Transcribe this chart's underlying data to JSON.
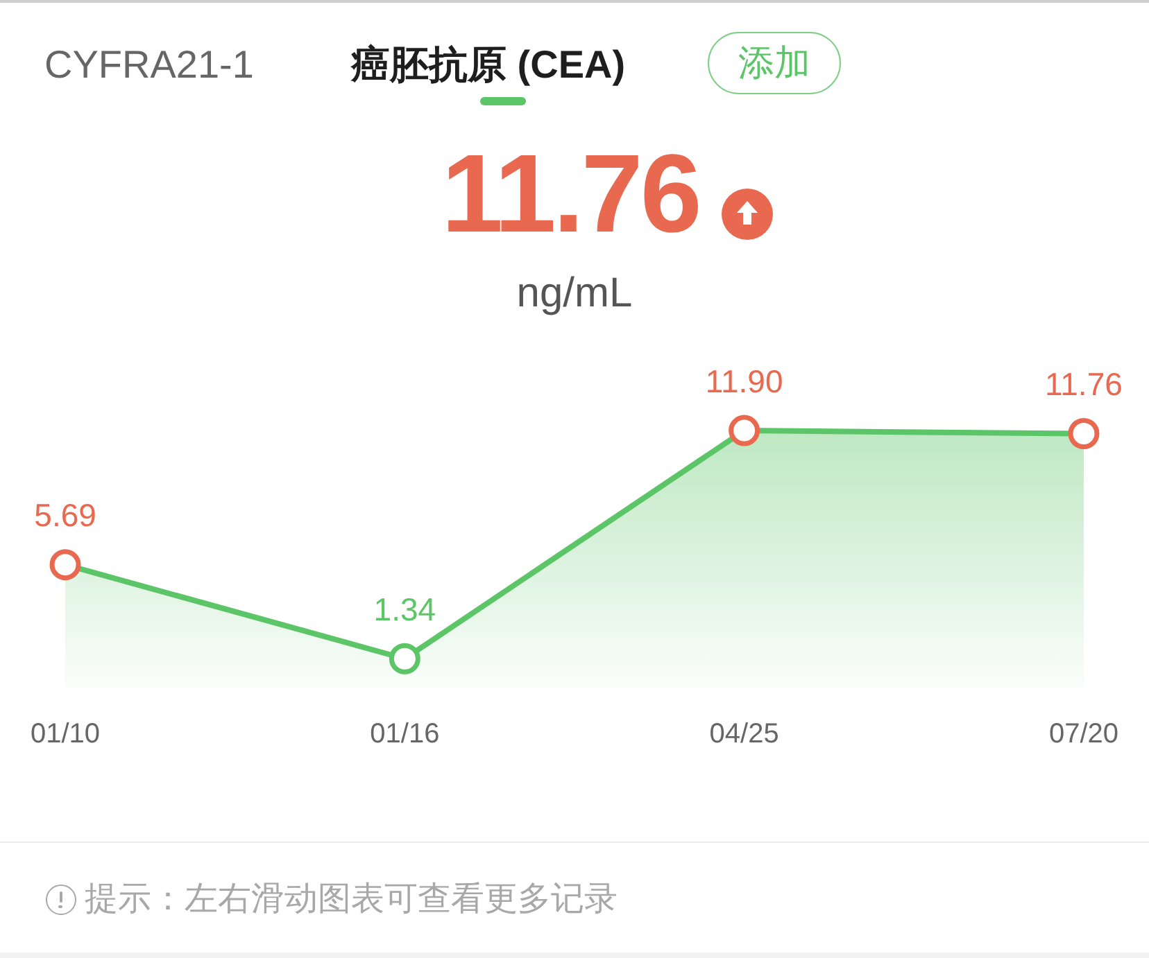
{
  "chart_data": {
    "type": "area",
    "title": "癌胚抗原 (CEA)",
    "annotations": [
      "CYFRA21-1",
      "添加",
      "11.76",
      "ng/mL",
      "提示：左右滑动图表可查看更多记录"
    ],
    "categories": [
      "01/10",
      "01/16",
      "04/25",
      "07/20"
    ],
    "values": [
      5.69,
      1.34,
      11.9,
      11.76
    ],
    "value_labels": [
      "5.69",
      "1.34",
      "11.90",
      "11.76"
    ],
    "color": "#5cc567",
    "colors": [
      "#e8694f",
      "#5cc567",
      "#e8694f",
      "#e8694f"
    ],
    "marker": "circle"
  }
}
